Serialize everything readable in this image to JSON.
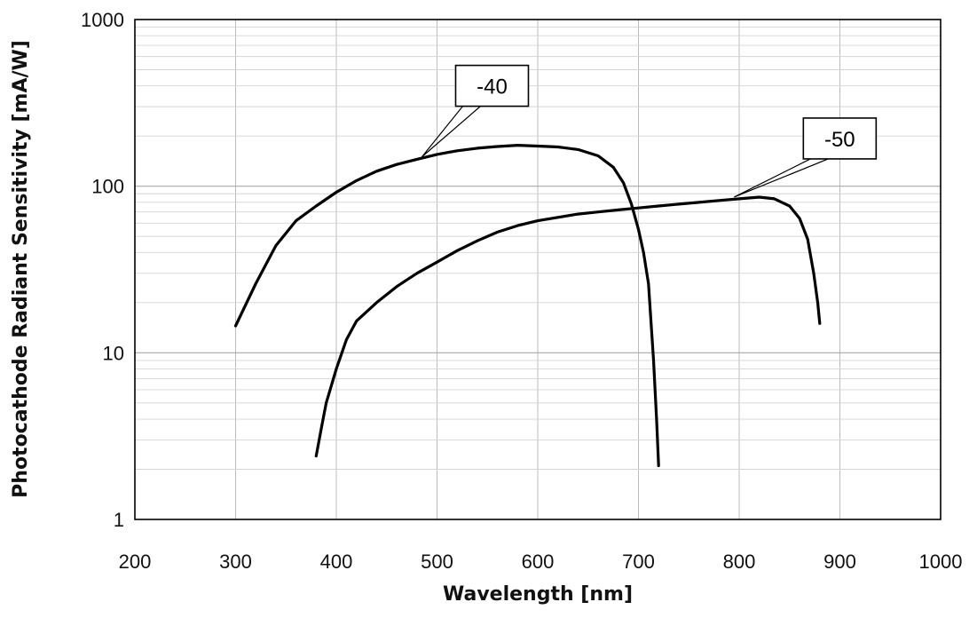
{
  "chart_data": {
    "type": "line",
    "title": "",
    "xlabel": "Wavelength [nm]",
    "ylabel": "Photocathode Radiant Sensitivity [mA/W]",
    "xlim": [
      200,
      1000
    ],
    "ylim": [
      1,
      1000
    ],
    "yscale": "log",
    "grid": true,
    "x_ticks": [
      200,
      300,
      400,
      500,
      600,
      700,
      800,
      900,
      1000
    ],
    "x_tick_labels": [
      "200",
      "300",
      "400",
      "500",
      "600",
      "700",
      "800",
      "900",
      "1000"
    ],
    "y_ticks": [
      1,
      10,
      100,
      1000
    ],
    "y_tick_labels": [
      "1",
      "10",
      "100",
      "1000"
    ],
    "series": [
      {
        "name": "-40",
        "label_anchor": [
          485,
          150
        ],
        "points": [
          [
            300,
            14.5
          ],
          [
            320,
            26
          ],
          [
            340,
            44
          ],
          [
            360,
            62
          ],
          [
            380,
            76
          ],
          [
            400,
            92
          ],
          [
            420,
            108
          ],
          [
            440,
            123
          ],
          [
            460,
            135
          ],
          [
            480,
            145
          ],
          [
            500,
            155
          ],
          [
            520,
            163
          ],
          [
            540,
            169
          ],
          [
            560,
            173
          ],
          [
            580,
            176
          ],
          [
            600,
            174
          ],
          [
            620,
            172
          ],
          [
            640,
            166
          ],
          [
            660,
            152
          ],
          [
            675,
            130
          ],
          [
            685,
            105
          ],
          [
            693,
            78
          ],
          [
            700,
            55
          ],
          [
            705,
            40
          ],
          [
            710,
            26
          ],
          [
            715,
            9
          ],
          [
            718,
            4
          ],
          [
            720,
            2.1
          ]
        ]
      },
      {
        "name": "-50",
        "label_anchor": [
          795,
          86
        ],
        "points": [
          [
            380,
            2.4
          ],
          [
            385,
            3.5
          ],
          [
            390,
            5.0
          ],
          [
            400,
            8.0
          ],
          [
            410,
            12
          ],
          [
            420,
            15.5
          ],
          [
            440,
            20
          ],
          [
            460,
            25
          ],
          [
            480,
            30
          ],
          [
            500,
            35
          ],
          [
            520,
            41
          ],
          [
            540,
            47
          ],
          [
            560,
            53
          ],
          [
            580,
            58
          ],
          [
            600,
            62
          ],
          [
            620,
            65
          ],
          [
            640,
            68
          ],
          [
            660,
            70
          ],
          [
            680,
            72
          ],
          [
            700,
            74
          ],
          [
            720,
            76
          ],
          [
            740,
            78
          ],
          [
            760,
            80
          ],
          [
            780,
            82
          ],
          [
            800,
            84
          ],
          [
            820,
            86
          ],
          [
            835,
            84
          ],
          [
            850,
            76
          ],
          [
            860,
            64
          ],
          [
            868,
            48
          ],
          [
            874,
            30
          ],
          [
            878,
            20
          ],
          [
            880,
            15
          ]
        ]
      }
    ]
  }
}
